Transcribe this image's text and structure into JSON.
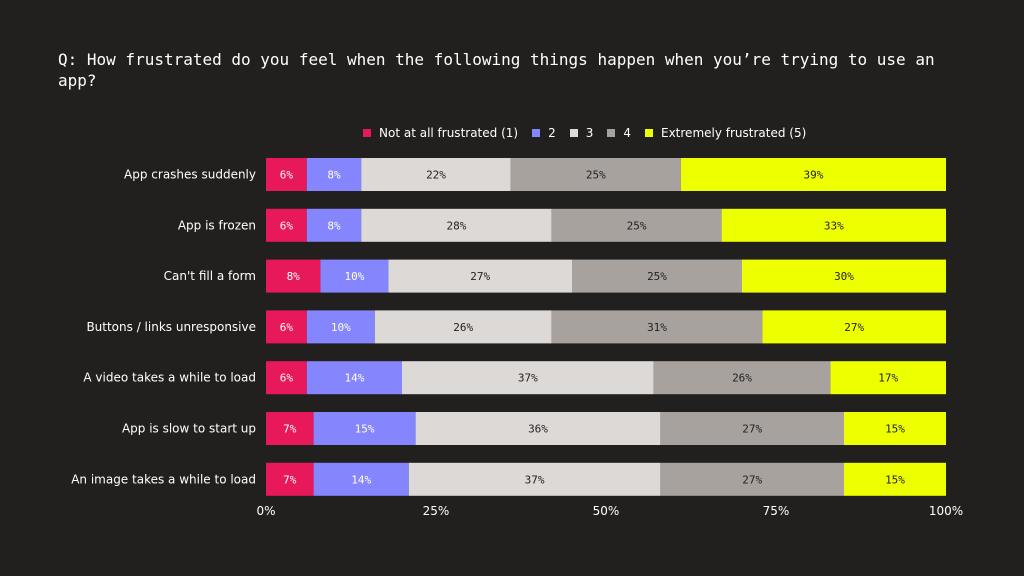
{
  "chart_data": {
    "type": "bar",
    "orientation": "horizontal",
    "stacked": true,
    "title": "Q: How frustrated do you feel when the following things happen when you’re trying to use an app?",
    "categories": [
      "App crashes suddenly",
      "App is frozen",
      "Can't fill a form",
      "Buttons / links unresponsive",
      "A video takes a while to load",
      "App is slow to start up",
      "An image takes a while to load"
    ],
    "series": [
      {
        "name": "Not at all frustrated (1)",
        "color": "#e8195a",
        "label_color": "#ffffff",
        "values": [
          6,
          6,
          8,
          6,
          6,
          7,
          7
        ]
      },
      {
        "name": "2",
        "color": "#8585fd",
        "label_color": "#ffffff",
        "values": [
          8,
          8,
          10,
          10,
          14,
          15,
          14
        ]
      },
      {
        "name": "3",
        "color": "#dcd9d7",
        "label_color": "#222222",
        "values": [
          22,
          28,
          27,
          26,
          37,
          36,
          37
        ]
      },
      {
        "name": "4",
        "color": "#a8a29f",
        "label_color": "#222222",
        "values": [
          25,
          25,
          25,
          31,
          26,
          27,
          27
        ]
      },
      {
        "name": "Extremely frustrated (5)",
        "color": "#eeff00",
        "label_color": "#222222",
        "values": [
          39,
          33,
          30,
          27,
          17,
          15,
          15
        ]
      }
    ],
    "xlim": [
      0,
      100
    ],
    "x_ticks": [
      "0%",
      "25%",
      "50%",
      "75%",
      "100%"
    ],
    "legend_position": "top",
    "grid": false
  }
}
